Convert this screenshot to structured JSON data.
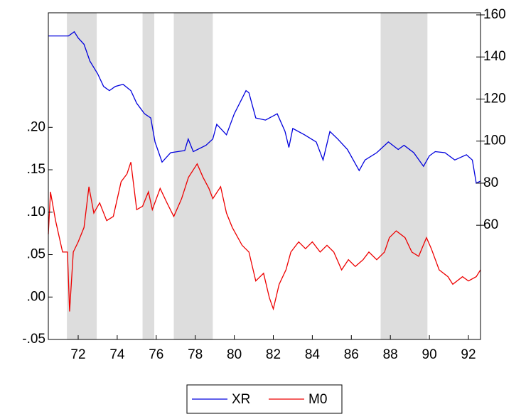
{
  "chart_data": {
    "type": "line",
    "xlim": [
      70.47,
      92.62
    ],
    "xticks": [
      72,
      74,
      76,
      78,
      80,
      82,
      84,
      86,
      88,
      90,
      92
    ],
    "ylim": [
      -0.05,
      0.335
    ],
    "yticks": [
      {
        "value": -0.05,
        "label": "-.05"
      },
      {
        "value": 0,
        "label": ".00"
      },
      {
        "value": 0.05,
        "label": ".05"
      },
      {
        "value": 0.1,
        "label": ".10"
      },
      {
        "value": 0.15,
        "label": ".15"
      },
      {
        "value": 0.2,
        "label": ".20"
      }
    ],
    "y2lim": [
      5.7,
      161
    ],
    "y2ticks": [
      60,
      80,
      100,
      120,
      140,
      160
    ],
    "shaded": [
      [
        71.42,
        72.95
      ],
      [
        75.3,
        75.9
      ],
      [
        76.9,
        78.9
      ],
      [
        87.5,
        89.9
      ]
    ],
    "shade_color": "#dddddd",
    "legend": "bottom",
    "series": [
      {
        "name": "XR",
        "color": "#0000dd",
        "axis": "y2",
        "x": [
          70.47,
          71.0,
          71.5,
          71.8,
          72.0,
          72.3,
          72.6,
          73.0,
          73.3,
          73.6,
          73.9,
          74.3,
          74.7,
          75.0,
          75.4,
          75.72,
          75.94,
          76.3,
          76.74,
          77.46,
          77.64,
          77.9,
          78.55,
          78.9,
          79.1,
          79.6,
          80.0,
          80.6,
          80.75,
          81.1,
          81.6,
          82.2,
          82.6,
          82.8,
          83.0,
          83.6,
          84.2,
          84.55,
          84.9,
          85.3,
          85.8,
          86.4,
          86.7,
          87.3,
          87.9,
          88.4,
          88.7,
          89.2,
          89.7,
          90.0,
          90.3,
          90.8,
          91.3,
          91.9,
          92.2,
          92.4,
          92.62
        ],
        "values": [
          150,
          150,
          150,
          152,
          149,
          146,
          138,
          132,
          126,
          124,
          126,
          127,
          124,
          118,
          113,
          111,
          99.6,
          90,
          94.5,
          95.5,
          101,
          95,
          98,
          101,
          108,
          103,
          113,
          124,
          123,
          111,
          110,
          113,
          104.6,
          97,
          106,
          103,
          99.6,
          91,
          104.6,
          101,
          96,
          86,
          91,
          94.5,
          99.6,
          96,
          98,
          94.5,
          88,
          93,
          95,
          94.5,
          91,
          93.5,
          91,
          80,
          81
        ]
      },
      {
        "name": "M0",
        "color": "#ee0000",
        "x": [
          70.47,
          70.58,
          70.84,
          71.2,
          71.45,
          71.56,
          71.75,
          72.0,
          72.3,
          72.55,
          72.8,
          73.1,
          73.46,
          73.8,
          74.2,
          74.5,
          74.7,
          75.0,
          75.3,
          75.6,
          75.8,
          76.2,
          76.55,
          76.9,
          77.3,
          77.65,
          78.1,
          78.4,
          78.7,
          78.9,
          79.3,
          79.6,
          79.9,
          80.4,
          80.75,
          81.1,
          81.5,
          81.8,
          82.0,
          82.3,
          82.65,
          82.9,
          83.3,
          83.65,
          84.0,
          84.4,
          84.75,
          85.1,
          85.5,
          85.85,
          86.2,
          86.6,
          86.9,
          87.3,
          87.7,
          87.95,
          88.3,
          88.75,
          89.1,
          89.45,
          89.85,
          90.1,
          90.5,
          90.95,
          91.2,
          91.7,
          92.0,
          92.4,
          92.62
        ],
        "values": [
          0.074,
          0.124,
          0.09,
          0.053,
          0.053,
          -0.017,
          0.053,
          0.065,
          0.082,
          0.13,
          0.099,
          0.111,
          0.09,
          0.095,
          0.136,
          0.145,
          0.159,
          0.103,
          0.107,
          0.124,
          0.103,
          0.128,
          0.111,
          0.095,
          0.116,
          0.141,
          0.157,
          0.141,
          0.128,
          0.116,
          0.13,
          0.099,
          0.082,
          0.061,
          0.053,
          0.019,
          0.028,
          -0.001,
          -0.014,
          0.015,
          0.032,
          0.053,
          0.065,
          0.057,
          0.065,
          0.053,
          0.061,
          0.053,
          0.032,
          0.044,
          0.036,
          0.044,
          0.053,
          0.044,
          0.053,
          0.07,
          0.078,
          0.07,
          0.053,
          0.048,
          0.07,
          0.057,
          0.032,
          0.024,
          0.015,
          0.024,
          0.019,
          0.024,
          0.032
        ]
      }
    ]
  }
}
